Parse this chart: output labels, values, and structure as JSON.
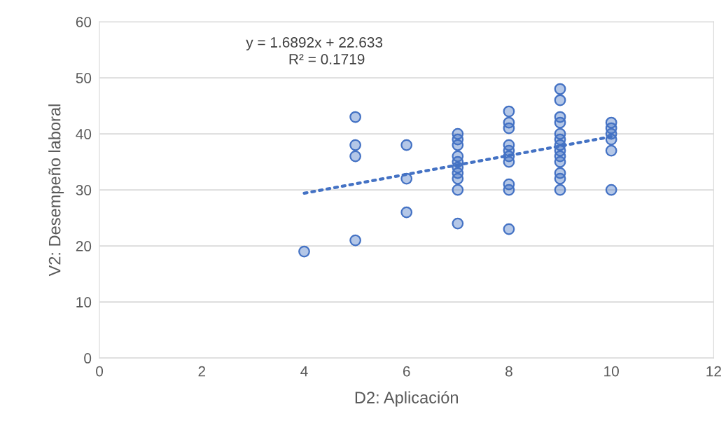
{
  "chart_data": {
    "type": "scatter",
    "xlabel": "D2: Aplicación",
    "ylabel": "V2: Desempeño laboral",
    "annotations": [
      "y = 1.6892x + 22.633",
      "R² = 0.1719"
    ],
    "series": [
      {
        "color": "#4472c4",
        "marker": "circle",
        "x": [
          4,
          5,
          5,
          5,
          5,
          6,
          6,
          6,
          7,
          7,
          7,
          7,
          7,
          7,
          7,
          7,
          7,
          7,
          8,
          8,
          8,
          8,
          8,
          8,
          8,
          8,
          8,
          8,
          9,
          9,
          9,
          9,
          9,
          9,
          9,
          9,
          9,
          9,
          9,
          9,
          9,
          10,
          10,
          10,
          10,
          10,
          10
        ],
        "values": [
          19,
          43,
          38,
          36,
          21,
          38,
          32,
          26,
          40,
          39,
          38,
          36,
          35,
          34,
          33,
          32,
          30,
          24,
          44,
          42,
          41,
          38,
          37,
          36,
          35,
          31,
          30,
          23,
          48,
          46,
          43,
          42,
          40,
          39,
          38,
          37,
          36,
          35,
          33,
          32,
          30,
          42,
          41,
          40,
          39,
          37,
          30
        ]
      },
      {
        "type": "line",
        "color": "#4472c4",
        "line_style": "dotted",
        "x": [
          4,
          10
        ],
        "values": [
          29.4,
          39.5
        ]
      }
    ],
    "xlim": [
      0,
      12
    ],
    "xticks": [
      0,
      2,
      4,
      6,
      8,
      10,
      12
    ],
    "ylim": [
      0,
      60
    ],
    "yticks": [
      0,
      10,
      20,
      30,
      40,
      50,
      60
    ],
    "grid": "y",
    "legend": false
  }
}
